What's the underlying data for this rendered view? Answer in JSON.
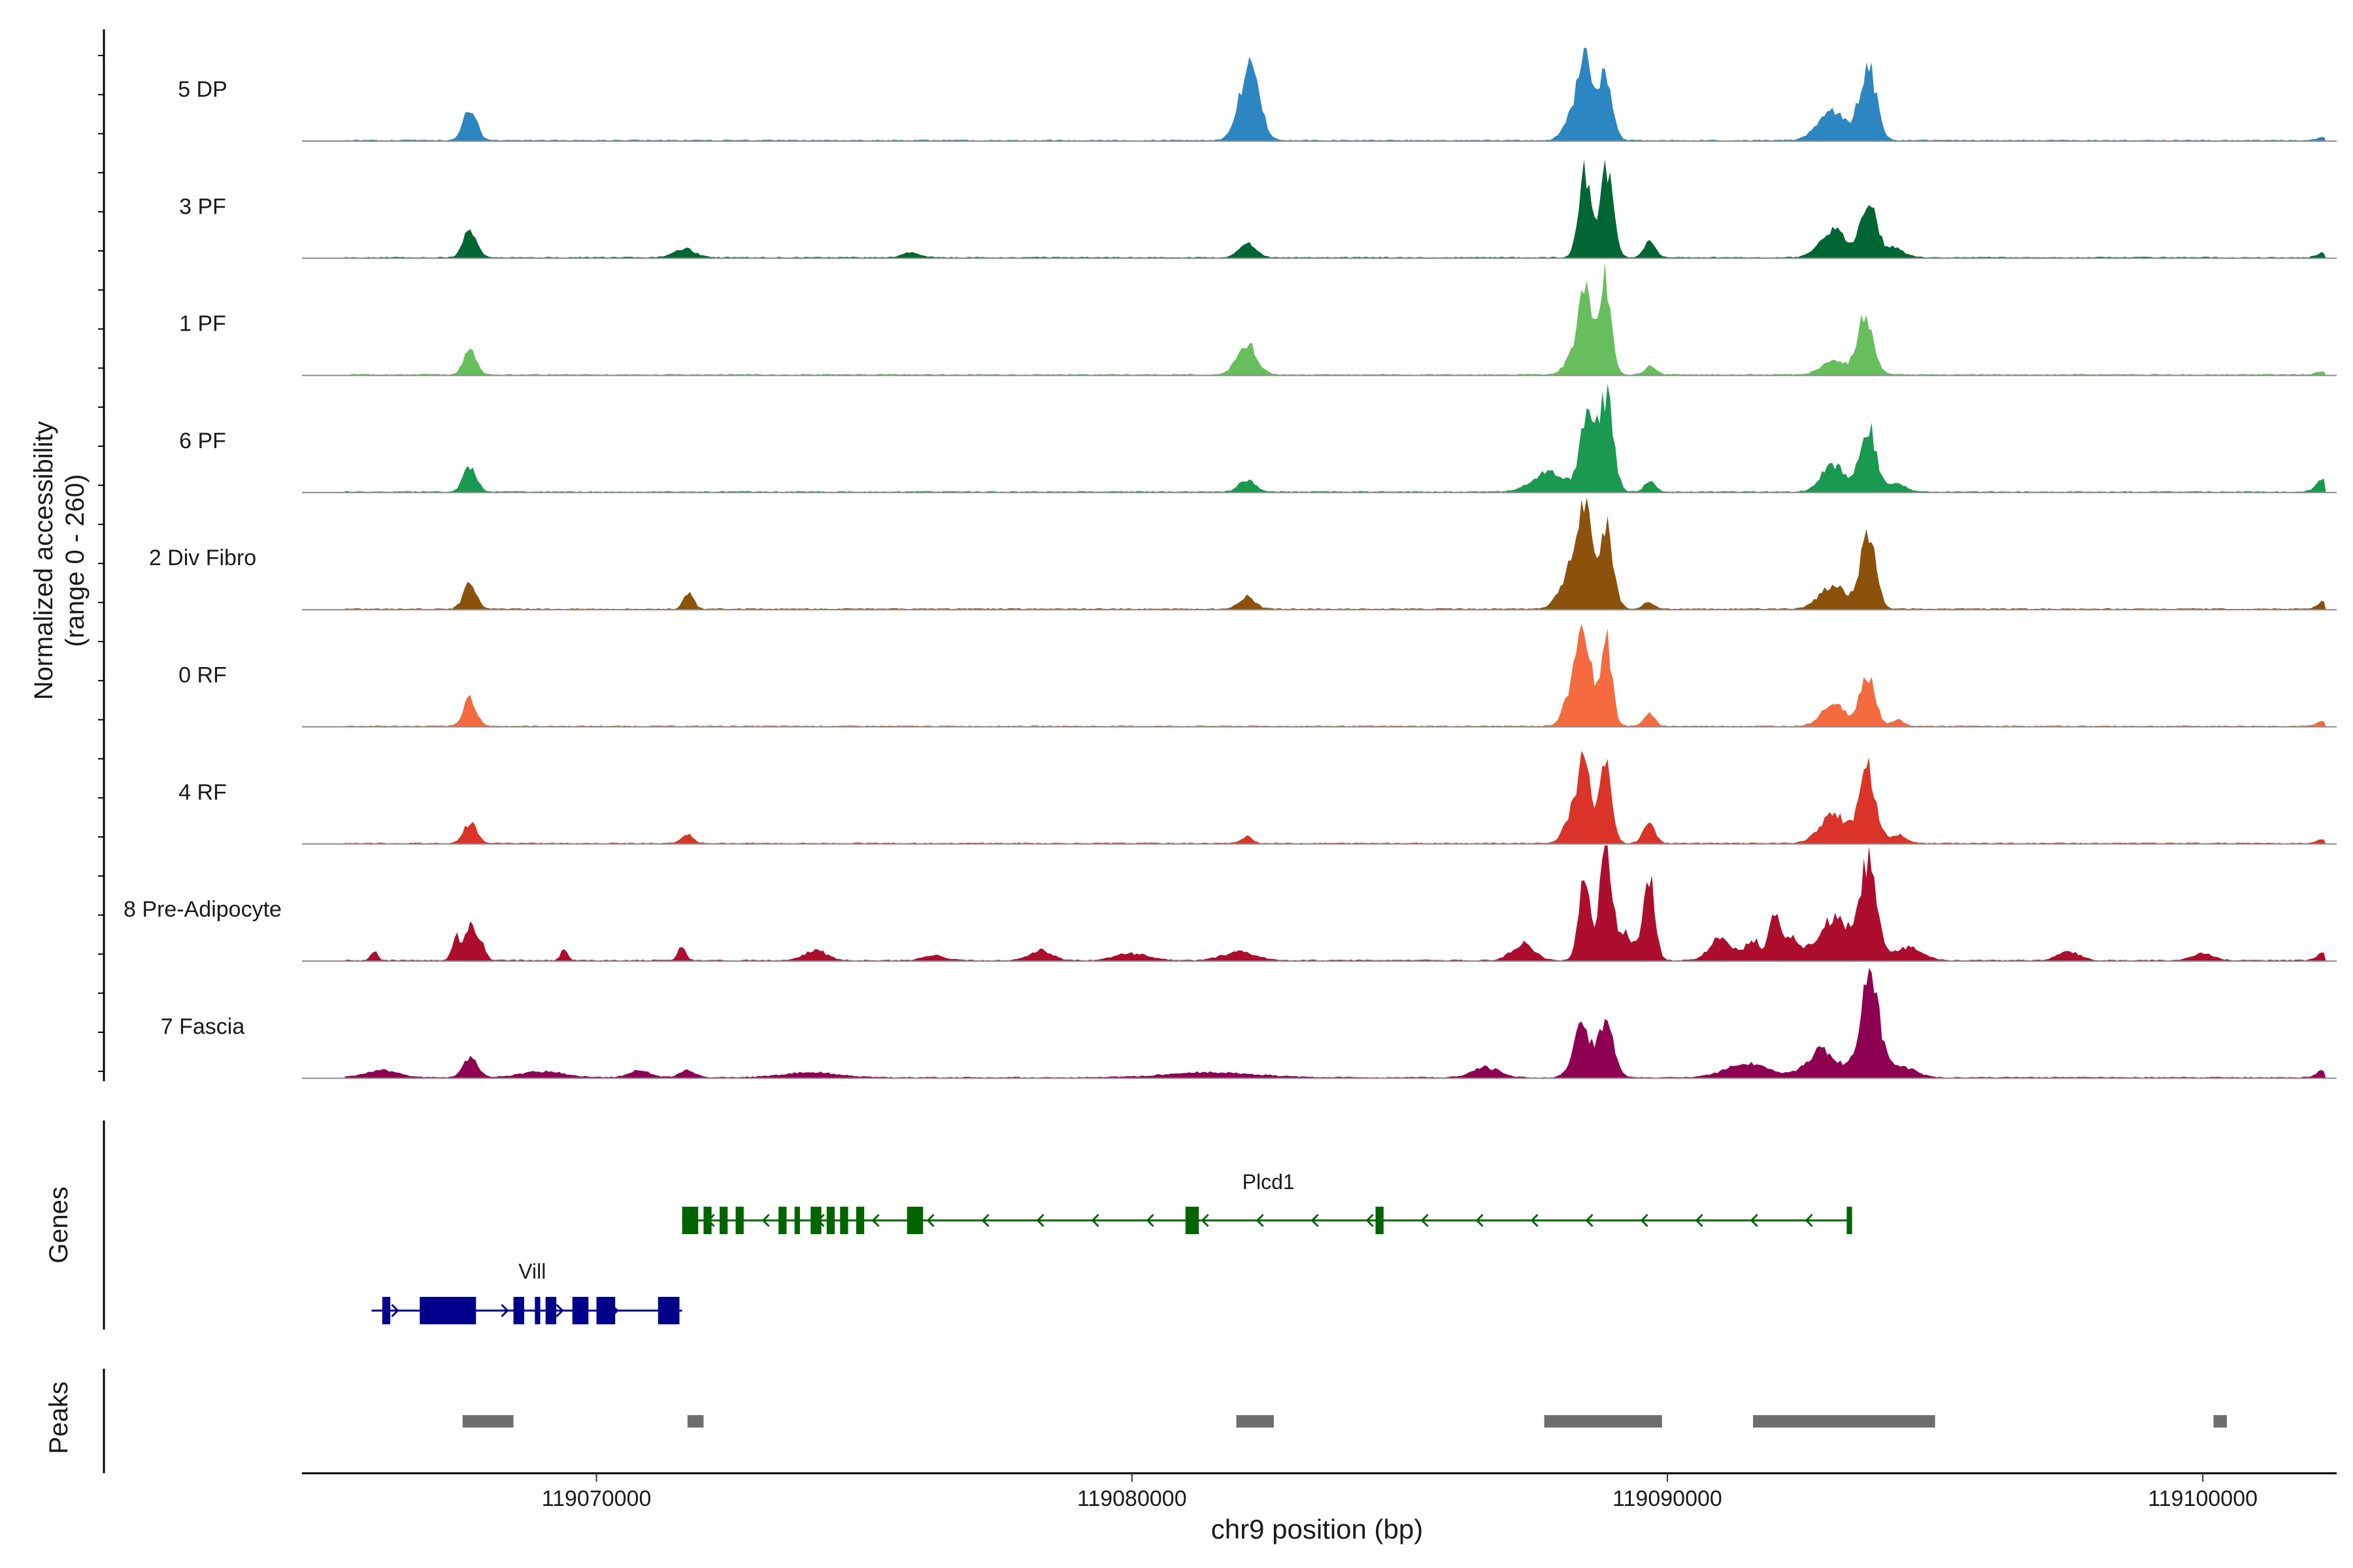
{
  "chart_data": {
    "type": "area",
    "title": "",
    "ylabel_line1": "Normalized accessibility",
    "ylabel_line2": "(range 0 - 260)",
    "xlabel": "chr9 position (bp)",
    "xlim": [
      119064500,
      119102500
    ],
    "ylim": [
      0,
      260
    ],
    "xticks": [
      119070000,
      119080000,
      119090000,
      119100000
    ],
    "xtick_labels": [
      "119070000",
      "119080000",
      "119090000",
      "119100000"
    ],
    "tracks": [
      {
        "name": "5 DP",
        "color": "#2C86C1",
        "peaks": [
          [
            119067640,
            95,
            120
          ],
          [
            119082160,
            150,
            180
          ],
          [
            119082270,
            110,
            150
          ],
          [
            119088250,
            90,
            160
          ],
          [
            119088480,
            210,
            120
          ],
          [
            119088850,
            200,
            120
          ],
          [
            119093100,
            80,
            280
          ],
          [
            119093750,
            220,
            150
          ],
          [
            119102240,
            10,
            100
          ]
        ]
      },
      {
        "name": "3 PF",
        "color": "#006633",
        "peaks": [
          [
            119067640,
            85,
            120
          ],
          [
            119071650,
            25,
            200
          ],
          [
            119075880,
            15,
            150
          ],
          [
            119082160,
            45,
            150
          ],
          [
            119088450,
            250,
            110
          ],
          [
            119088860,
            265,
            120
          ],
          [
            119089680,
            55,
            100
          ],
          [
            119093100,
            80,
            250
          ],
          [
            119093760,
            170,
            140
          ],
          [
            119094200,
            30,
            200
          ],
          [
            119102240,
            15,
            100
          ]
        ]
      },
      {
        "name": "1 PF",
        "color": "#66BF5C",
        "peaks": [
          [
            119067640,
            70,
            120
          ],
          [
            119082150,
            90,
            180
          ],
          [
            119088250,
            60,
            150
          ],
          [
            119088480,
            275,
            110
          ],
          [
            119088840,
            285,
            110
          ],
          [
            119089680,
            25,
            100
          ],
          [
            119093100,
            40,
            220
          ],
          [
            119093700,
            170,
            150
          ],
          [
            119102240,
            10,
            100
          ]
        ]
      },
      {
        "name": "6 PF",
        "color": "#1A9950",
        "peaks": [
          [
            119067640,
            75,
            120
          ],
          [
            119082150,
            35,
            150
          ],
          [
            119087800,
            60,
            300
          ],
          [
            119088500,
            230,
            130
          ],
          [
            119088860,
            270,
            130
          ],
          [
            119089680,
            30,
            100
          ],
          [
            119093100,
            80,
            220
          ],
          [
            119093750,
            190,
            150
          ],
          [
            119094300,
            25,
            150
          ],
          [
            119102240,
            35,
            120
          ]
        ]
      },
      {
        "name": "2 Div Fibro",
        "color": "#8C510A",
        "peaks": [
          [
            119067640,
            75,
            120
          ],
          [
            119071720,
            50,
            90
          ],
          [
            119082150,
            35,
            150
          ],
          [
            119088200,
            110,
            200
          ],
          [
            119088460,
            260,
            130
          ],
          [
            119088860,
            235,
            130
          ],
          [
            119089650,
            20,
            100
          ],
          [
            119093100,
            70,
            250
          ],
          [
            119093750,
            230,
            140
          ],
          [
            119102240,
            20,
            100
          ]
        ]
      },
      {
        "name": "0 RF",
        "color": "#F36B3F",
        "peaks": [
          [
            119067640,
            80,
            120
          ],
          [
            119088260,
            130,
            160
          ],
          [
            119088470,
            230,
            110
          ],
          [
            119088850,
            260,
            110
          ],
          [
            119089660,
            35,
            100
          ],
          [
            119093100,
            65,
            220
          ],
          [
            119093740,
            155,
            140
          ],
          [
            119094300,
            20,
            100
          ],
          [
            119102240,
            15,
            100
          ]
        ]
      },
      {
        "name": "4 RF",
        "color": "#D93427",
        "peaks": [
          [
            119067640,
            60,
            120
          ],
          [
            119071700,
            25,
            100
          ],
          [
            119082150,
            20,
            100
          ],
          [
            119088260,
            100,
            160
          ],
          [
            119088470,
            215,
            110
          ],
          [
            119088850,
            225,
            110
          ],
          [
            119089660,
            60,
            110
          ],
          [
            119093100,
            85,
            250
          ],
          [
            119093740,
            215,
            150
          ],
          [
            119094300,
            25,
            150
          ],
          [
            119102240,
            10,
            100
          ]
        ]
      },
      {
        "name": "8 Pre-Adipocyte",
        "color": "#AE0E2E",
        "peaks": [
          [
            119065850,
            30,
            60
          ],
          [
            119067380,
            70,
            80
          ],
          [
            119067640,
            110,
            80
          ],
          [
            119067850,
            50,
            80
          ],
          [
            119069400,
            35,
            60
          ],
          [
            119071600,
            45,
            70
          ],
          [
            119074100,
            30,
            200
          ],
          [
            119076300,
            15,
            200
          ],
          [
            119078300,
            30,
            200
          ],
          [
            119080000,
            20,
            300
          ],
          [
            119082000,
            25,
            300
          ],
          [
            119087300,
            50,
            200
          ],
          [
            119088450,
            230,
            110
          ],
          [
            119088850,
            330,
            110
          ],
          [
            119089200,
            80,
            150
          ],
          [
            119089650,
            250,
            110
          ],
          [
            119091000,
            70,
            200
          ],
          [
            119091600,
            60,
            150
          ],
          [
            119092000,
            120,
            100
          ],
          [
            119092300,
            60,
            150
          ],
          [
            119093100,
            120,
            300
          ],
          [
            119093750,
            280,
            160
          ],
          [
            119094500,
            40,
            250
          ],
          [
            119097500,
            25,
            200
          ],
          [
            119100000,
            20,
            200
          ],
          [
            119102240,
            25,
            100
          ]
        ]
      },
      {
        "name": "7 Fascia",
        "color": "#8E0152",
        "peaks": [
          [
            119066000,
            20,
            300
          ],
          [
            119067650,
            55,
            140
          ],
          [
            119069000,
            18,
            400
          ],
          [
            119070800,
            20,
            200
          ],
          [
            119071700,
            20,
            150
          ],
          [
            119074000,
            15,
            500
          ],
          [
            119081500,
            15,
            800
          ],
          [
            119086600,
            30,
            250
          ],
          [
            119088400,
            140,
            160
          ],
          [
            119088850,
            150,
            150
          ],
          [
            119091500,
            40,
            400
          ],
          [
            119092900,
            80,
            280
          ],
          [
            119093780,
            280,
            180
          ],
          [
            119094400,
            30,
            250
          ],
          [
            119102240,
            20,
            120
          ]
        ]
      }
    ],
    "genes_label": "Genes",
    "genes": [
      {
        "name": "Plcd1",
        "color": "#006400",
        "strand": "-",
        "start": 119071600,
        "end": 119093450,
        "exons": [
          [
            119071600,
            119071900
          ],
          [
            119072000,
            119072150
          ],
          [
            119072300,
            119072450
          ],
          [
            119072600,
            119072750
          ],
          [
            119073400,
            119073550
          ],
          [
            119073700,
            119073800
          ],
          [
            119074000,
            119074200
          ],
          [
            119074300,
            119074450
          ],
          [
            119074550,
            119074700
          ],
          [
            119074850,
            119075000
          ],
          [
            119075800,
            119076100
          ],
          [
            119081000,
            119081250
          ],
          [
            119084550,
            119084700
          ],
          [
            119093350,
            119093450
          ]
        ]
      },
      {
        "name": "Vill",
        "color": "#00008B",
        "strand": "+",
        "start": 119065800,
        "end": 119071600,
        "exons": [
          [
            119066000,
            119066150
          ],
          [
            119066700,
            119067750
          ],
          [
            119068450,
            119068650
          ],
          [
            119068850,
            119068950
          ],
          [
            119069050,
            119069250
          ],
          [
            119069550,
            119069850
          ],
          [
            119070000,
            119070350
          ],
          [
            119071150,
            119071550
          ]
        ]
      }
    ],
    "peaks_label": "Peaks",
    "peak_regions": [
      [
        119067500,
        119068450
      ],
      [
        119071700,
        119072000
      ],
      [
        119081950,
        119082650
      ],
      [
        119087700,
        119089900
      ],
      [
        119091600,
        119095000
      ],
      [
        119100200,
        119100450
      ]
    ]
  }
}
